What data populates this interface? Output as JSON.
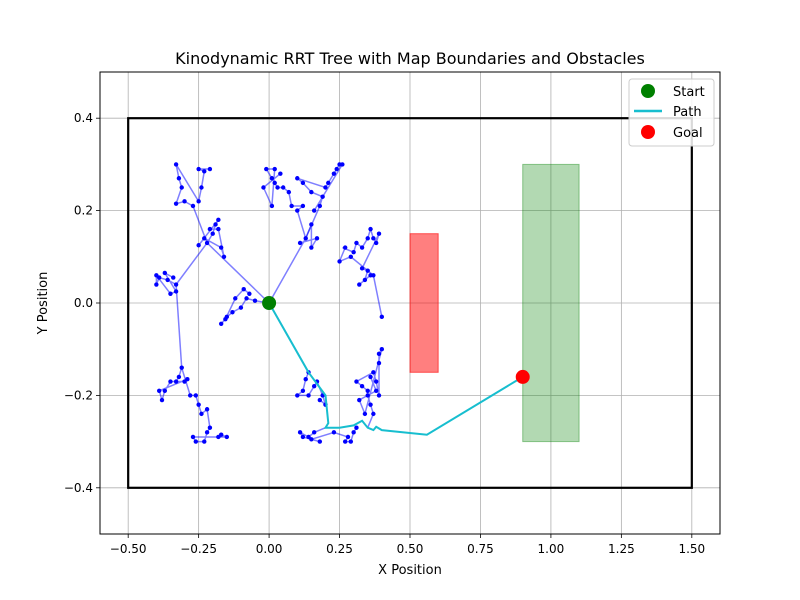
{
  "chart_data": {
    "type": "scatter",
    "title": "Kinodynamic RRT Tree with Map Boundaries and Obstacles",
    "xlabel": "X Position",
    "ylabel": "Y Position",
    "xlim": [
      -0.6,
      1.6
    ],
    "ylim": [
      -0.5,
      0.5
    ],
    "x_ticks": [
      -0.5,
      -0.25,
      0.0,
      0.25,
      0.5,
      0.75,
      1.0,
      1.25,
      1.5
    ],
    "x_tick_labels": [
      "−0.50",
      "−0.25",
      "0.00",
      "0.25",
      "0.50",
      "0.75",
      "1.00",
      "1.25",
      "1.50"
    ],
    "y_ticks": [
      -0.4,
      -0.2,
      0.0,
      0.2,
      0.4
    ],
    "y_tick_labels": [
      "−0.4",
      "−0.2",
      "0.0",
      "0.2",
      "0.4"
    ],
    "grid": true,
    "legend_position": "top-right",
    "legend": [
      {
        "label": "Start",
        "marker": "circle",
        "color": "#008000"
      },
      {
        "label": "Path",
        "marker": "line",
        "color": "#17becf"
      },
      {
        "label": "Goal",
        "marker": "circle",
        "color": "#ff0000"
      }
    ],
    "boundary": {
      "x": [
        -0.5,
        1.5
      ],
      "y": [
        -0.4,
        0.4
      ],
      "color": "#000000"
    },
    "obstacles": [
      {
        "x": [
          0.5,
          0.6
        ],
        "y": [
          -0.15,
          0.15
        ],
        "color": "#ff0000",
        "alpha": 0.5
      },
      {
        "x": [
          0.9,
          1.1
        ],
        "y": [
          -0.3,
          0.3
        ],
        "color": "#008000",
        "alpha": 0.3
      }
    ],
    "start": [
      0.0,
      0.0
    ],
    "goal": [
      0.9,
      -0.16
    ],
    "path_color": "#17becf",
    "tree_color": "#0000ff",
    "path": [
      [
        0.0,
        0.0
      ],
      [
        0.14,
        -0.15
      ],
      [
        0.2,
        -0.2
      ],
      [
        0.21,
        -0.26
      ],
      [
        0.2,
        -0.27
      ],
      [
        0.25,
        -0.27
      ],
      [
        0.3,
        -0.265
      ],
      [
        0.33,
        -0.255
      ],
      [
        0.35,
        -0.27
      ],
      [
        0.37,
        -0.275
      ],
      [
        0.38,
        -0.268
      ],
      [
        0.4,
        -0.275
      ],
      [
        0.56,
        -0.285
      ],
      [
        0.9,
        -0.16
      ]
    ],
    "tree": [
      {
        "p": [
          0.0,
          0.0
        ],
        "points": [
          [
            -0.05,
            0.005
          ],
          [
            -0.08,
            0.01
          ],
          [
            -0.1,
            -0.01
          ],
          [
            -0.13,
            -0.02
          ],
          [
            -0.15,
            -0.03
          ],
          [
            -0.17,
            -0.045
          ],
          [
            -0.155,
            -0.035
          ],
          [
            -0.12,
            0.01
          ],
          [
            -0.09,
            0.03
          ],
          [
            -0.07,
            0.02
          ]
        ]
      },
      {
        "p": [
          0.0,
          0.0
        ],
        "points": [
          [
            -0.22,
            0.13
          ],
          [
            -0.2,
            0.15
          ],
          [
            -0.19,
            0.17
          ],
          [
            -0.18,
            0.18
          ],
          [
            -0.25,
            0.125
          ],
          [
            -0.23,
            0.14
          ],
          [
            -0.17,
            0.12
          ],
          [
            -0.16,
            0.1
          ],
          [
            -0.18,
            0.16
          ],
          [
            -0.21,
            0.16
          ]
        ]
      },
      {
        "p": [
          -0.22,
          0.13
        ],
        "points": [
          [
            -0.27,
            0.21
          ],
          [
            -0.3,
            0.22
          ],
          [
            -0.33,
            0.215
          ],
          [
            -0.31,
            0.25
          ],
          [
            -0.32,
            0.27
          ],
          [
            -0.33,
            0.3
          ],
          [
            -0.25,
            0.22
          ],
          [
            -0.24,
            0.25
          ],
          [
            -0.23,
            0.285
          ],
          [
            -0.25,
            0.29
          ],
          [
            -0.21,
            0.29
          ]
        ]
      },
      {
        "p": [
          -0.22,
          0.13
        ],
        "points": [
          [
            -0.33,
            0.04
          ],
          [
            -0.36,
            0.05
          ],
          [
            -0.39,
            0.055
          ],
          [
            -0.4,
            0.04
          ],
          [
            -0.4,
            0.06
          ],
          [
            -0.35,
            0.02
          ],
          [
            -0.33,
            0.025
          ],
          [
            -0.37,
            0.065
          ],
          [
            -0.34,
            0.055
          ]
        ]
      },
      {
        "p": [
          -0.33,
          0.04
        ],
        "points": [
          [
            -0.31,
            -0.14
          ],
          [
            -0.32,
            -0.16
          ],
          [
            -0.33,
            -0.17
          ],
          [
            -0.3,
            -0.17
          ],
          [
            -0.35,
            -0.17
          ],
          [
            -0.37,
            -0.19
          ],
          [
            -0.38,
            -0.21
          ],
          [
            -0.39,
            -0.19
          ],
          [
            -0.29,
            -0.165
          ]
        ]
      },
      {
        "p": [
          -0.31,
          -0.14
        ],
        "points": [
          [
            -0.28,
            -0.2
          ],
          [
            -0.26,
            -0.2
          ],
          [
            -0.25,
            -0.22
          ],
          [
            -0.24,
            -0.24
          ],
          [
            -0.22,
            -0.23
          ],
          [
            -0.21,
            -0.27
          ],
          [
            -0.22,
            -0.28
          ],
          [
            -0.23,
            -0.3
          ],
          [
            -0.26,
            -0.3
          ],
          [
            -0.27,
            -0.29
          ],
          [
            -0.18,
            -0.29
          ],
          [
            -0.15,
            -0.29
          ],
          [
            -0.17,
            -0.285
          ]
        ]
      },
      {
        "p": [
          0.0,
          0.0
        ],
        "points": [
          [
            0.13,
            0.14
          ],
          [
            0.15,
            0.17
          ],
          [
            0.15,
            0.12
          ],
          [
            0.17,
            0.14
          ],
          [
            0.11,
            0.13
          ]
        ]
      },
      {
        "p": [
          0.13,
          0.14
        ],
        "points": [
          [
            0.1,
            0.2
          ],
          [
            0.12,
            0.21
          ],
          [
            0.08,
            0.21
          ],
          [
            0.07,
            0.24
          ],
          [
            0.05,
            0.25
          ],
          [
            0.03,
            0.25
          ],
          [
            0.02,
            0.26
          ],
          [
            0.01,
            0.27
          ],
          [
            -0.01,
            0.29
          ],
          [
            0.02,
            0.29
          ],
          [
            0.01,
            0.21
          ],
          [
            -0.02,
            0.25
          ],
          [
            0.04,
            0.28
          ]
        ]
      },
      {
        "p": [
          0.13,
          0.14
        ],
        "points": [
          [
            0.18,
            0.21
          ],
          [
            0.19,
            0.23
          ],
          [
            0.15,
            0.24
          ],
          [
            0.12,
            0.26
          ],
          [
            0.1,
            0.27
          ],
          [
            0.2,
            0.25
          ],
          [
            0.21,
            0.26
          ],
          [
            0.23,
            0.28
          ],
          [
            0.24,
            0.29
          ],
          [
            0.25,
            0.3
          ],
          [
            0.26,
            0.3
          ],
          [
            0.16,
            0.2
          ]
        ]
      },
      {
        "p": [
          0.26,
          0.12
        ],
        "points": [
          [
            0.3,
            0.11
          ],
          [
            0.31,
            0.13
          ],
          [
            0.33,
            0.12
          ],
          [
            0.35,
            0.14
          ],
          [
            0.36,
            0.16
          ],
          [
            0.37,
            0.14
          ],
          [
            0.38,
            0.13
          ],
          [
            0.39,
            0.15
          ],
          [
            0.33,
            0.075
          ],
          [
            0.35,
            0.07
          ],
          [
            0.34,
            0.05
          ],
          [
            0.32,
            0.04
          ],
          [
            0.36,
            0.06
          ],
          [
            0.37,
            0.06
          ],
          [
            0.29,
            0.1
          ],
          [
            0.25,
            0.09
          ],
          [
            0.27,
            0.12
          ]
        ]
      },
      {
        "p": [
          0.37,
          0.06
        ],
        "points": [
          [
            0.4,
            -0.03
          ]
        ]
      },
      {
        "p": [
          0.0,
          0.0
        ],
        "points": [
          [
            0.14,
            -0.15
          ],
          [
            0.13,
            -0.165
          ],
          [
            0.12,
            -0.19
          ],
          [
            0.1,
            -0.2
          ],
          [
            0.14,
            -0.2
          ],
          [
            0.16,
            -0.18
          ],
          [
            0.17,
            -0.17
          ],
          [
            0.19,
            -0.2
          ],
          [
            0.2,
            -0.22
          ],
          [
            0.18,
            -0.21
          ]
        ]
      },
      {
        "p": [
          0.2,
          -0.27
        ],
        "points": [
          [
            0.16,
            -0.28
          ],
          [
            0.14,
            -0.29
          ],
          [
            0.11,
            -0.28
          ],
          [
            0.12,
            -0.29
          ],
          [
            0.18,
            -0.3
          ],
          [
            0.15,
            -0.295
          ],
          [
            0.23,
            -0.28
          ],
          [
            0.28,
            -0.29
          ],
          [
            0.27,
            -0.3
          ],
          [
            0.29,
            -0.3
          ],
          [
            0.3,
            -0.28
          ],
          [
            0.31,
            -0.27
          ]
        ]
      },
      {
        "p": [
          0.35,
          -0.27
        ],
        "points": [
          [
            0.37,
            -0.24
          ],
          [
            0.36,
            -0.22
          ],
          [
            0.35,
            -0.2
          ],
          [
            0.35,
            -0.19
          ],
          [
            0.33,
            -0.18
          ],
          [
            0.31,
            -0.17
          ],
          [
            0.37,
            -0.15
          ],
          [
            0.38,
            -0.17
          ],
          [
            0.39,
            -0.2
          ],
          [
            0.39,
            -0.13
          ],
          [
            0.39,
            -0.11
          ],
          [
            0.4,
            -0.1
          ],
          [
            0.34,
            -0.24
          ],
          [
            0.32,
            -0.21
          ],
          [
            0.38,
            -0.19
          ],
          [
            0.36,
            -0.16
          ]
        ]
      }
    ]
  }
}
